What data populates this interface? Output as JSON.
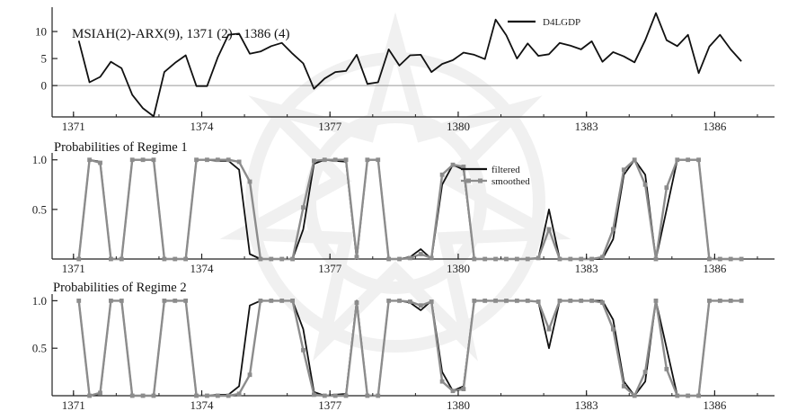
{
  "chart_data": [
    {
      "type": "line",
      "title": "MSIAH(2)-ARX(9), 1371 (2) - 1386 (4)",
      "xlabel": "",
      "ylabel": "",
      "x_start": 1371.125,
      "x_step": 0.25,
      "xlim": [
        1370.5,
        1387.4
      ],
      "ylim": [
        -5.8,
        14.5
      ],
      "xticks": [
        "1371",
        "1374",
        "1377",
        "1380",
        "1383",
        "1386"
      ],
      "yticks": [
        "0",
        "5",
        "10"
      ],
      "zero_line": true,
      "legend_position": "top-right",
      "series": [
        {
          "name": "D4LGDP",
          "color": "#111111",
          "values": [
            8.3,
            0.6,
            1.6,
            4.4,
            3.2,
            -1.7,
            -4.2,
            -5.7,
            2.5,
            4.2,
            5.6,
            -0.1,
            -0.1,
            5.2,
            9.4,
            9.6,
            5.9,
            6.3,
            7.3,
            7.9,
            5.9,
            4.1,
            -0.6,
            1.3,
            2.5,
            2.7,
            5.7,
            0.3,
            0.6,
            6.7,
            3.7,
            5.6,
            5.7,
            2.5,
            4.0,
            4.7,
            6.1,
            5.7,
            4.9,
            12.2,
            9.3,
            5.0,
            7.8,
            5.5,
            5.8,
            7.9,
            7.4,
            6.7,
            8.2,
            4.4,
            6.2,
            5.4,
            4.3,
            8.4,
            13.4,
            8.4,
            7.3,
            9.4,
            2.3,
            7.2,
            9.4,
            6.7,
            4.5
          ]
        }
      ]
    },
    {
      "type": "line",
      "title": "Probabilities of Regime 1",
      "xlabel": "",
      "ylabel": "",
      "x_start": 1371.125,
      "x_step": 0.25,
      "xlim": [
        1370.5,
        1387.4
      ],
      "ylim": [
        0,
        1.07
      ],
      "xticks": [
        "1371",
        "1374",
        "1377",
        "1380",
        "1383",
        "1386"
      ],
      "yticks": [
        "0.5",
        "1.0"
      ],
      "legend_position": "top-center",
      "series": [
        {
          "name": "filtered",
          "color": "#111111",
          "values": [
            0,
            1,
            0.98,
            0,
            0,
            1,
            1,
            1,
            0,
            0,
            0,
            1,
            1,
            0.99,
            0.99,
            0.9,
            0.05,
            0,
            0,
            0,
            0,
            0.3,
            0.96,
            1,
            0.99,
            0.98,
            0,
            1,
            1,
            0,
            0,
            0.02,
            0.1,
            0,
            0.75,
            0.95,
            0.9,
            0,
            0,
            0,
            0,
            0,
            0,
            0.01,
            0.5,
            0,
            0,
            0,
            0,
            0,
            0.2,
            0.85,
            1,
            0.85,
            0,
            0.5,
            1,
            1,
            1,
            0,
            0,
            0,
            0
          ]
        },
        {
          "name": "smoothed",
          "color": "#8c8c8c",
          "values": [
            0,
            1,
            0.97,
            0,
            0,
            1,
            1,
            1,
            0,
            0,
            0,
            1,
            1,
            1,
            1,
            0.98,
            0.78,
            0,
            0,
            0,
            0,
            0.52,
            0.99,
            1,
            1,
            1,
            0.02,
            1,
            1,
            0,
            0,
            0.01,
            0.05,
            0.01,
            0.85,
            0.95,
            0.93,
            0,
            0,
            0,
            0,
            0,
            0,
            0.01,
            0.3,
            0,
            0,
            0,
            0,
            0.02,
            0.3,
            0.9,
            1,
            0.75,
            0,
            0.72,
            1,
            1,
            1,
            0,
            0,
            0,
            0
          ]
        }
      ]
    },
    {
      "type": "line",
      "title": "Probabilities of Regime 2",
      "xlabel": "",
      "ylabel": "",
      "x_start": 1371.125,
      "x_step": 0.25,
      "xlim": [
        1370.5,
        1387.4
      ],
      "ylim": [
        0,
        1.07
      ],
      "xticks": [
        "1371",
        "1374",
        "1377",
        "1380",
        "1383",
        "1386"
      ],
      "yticks": [
        "0.5",
        "1.0"
      ],
      "legend_position": "none",
      "series": [
        {
          "name": "filtered",
          "color": "#111111",
          "values": [
            1,
            0,
            0.02,
            1,
            1,
            0,
            0,
            0,
            1,
            1,
            1,
            0,
            0,
            0.01,
            0.01,
            0.1,
            0.95,
            1,
            1,
            1,
            1,
            0.7,
            0.04,
            0,
            0.01,
            0.02,
            1,
            0,
            0,
            1,
            1,
            0.98,
            0.9,
            1,
            0.25,
            0.05,
            0.1,
            1,
            1,
            1,
            1,
            1,
            1,
            0.99,
            0.5,
            1,
            1,
            1,
            1,
            1,
            0.8,
            0.15,
            0,
            0.15,
            1,
            0.5,
            0,
            0,
            0,
            1,
            1,
            1,
            1
          ]
        },
        {
          "name": "smoothed",
          "color": "#8c8c8c",
          "values": [
            1,
            0,
            0.03,
            1,
            1,
            0,
            0,
            0,
            1,
            1,
            1,
            0,
            0,
            0,
            0,
            0.02,
            0.22,
            1,
            1,
            1,
            1,
            0.48,
            0.01,
            0,
            0,
            0,
            0.98,
            0,
            0,
            1,
            1,
            0.99,
            0.95,
            0.99,
            0.15,
            0.05,
            0.07,
            1,
            1,
            1,
            1,
            1,
            1,
            0.99,
            0.7,
            1,
            1,
            1,
            1,
            0.98,
            0.7,
            0.1,
            0,
            0.25,
            1,
            0.28,
            0,
            0,
            0,
            1,
            1,
            1,
            1
          ]
        }
      ]
    }
  ]
}
